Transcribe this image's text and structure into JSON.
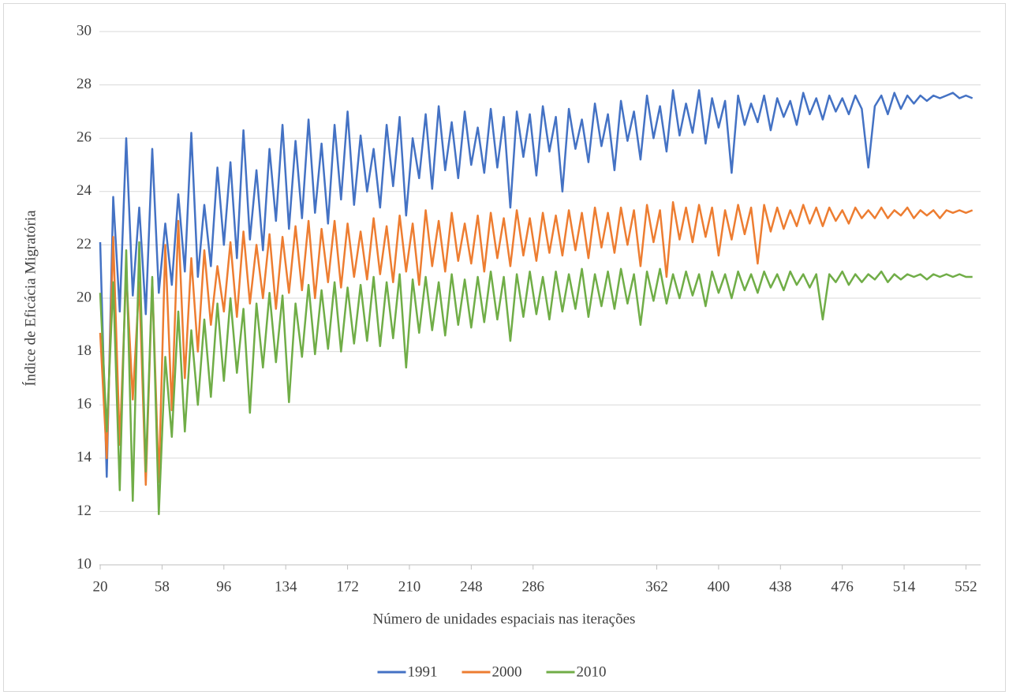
{
  "chart_data": {
    "type": "line",
    "x_label": "Número de unidades espaciais nas iterações",
    "y_label": "Índice de Eficácia Migratória",
    "x": [
      20,
      24,
      28,
      32,
      36,
      40,
      44,
      48,
      52,
      56,
      60,
      64,
      68,
      72,
      76,
      80,
      84,
      88,
      92,
      96,
      100,
      104,
      108,
      112,
      116,
      120,
      124,
      128,
      132,
      136,
      140,
      144,
      148,
      152,
      156,
      160,
      164,
      168,
      172,
      176,
      180,
      184,
      188,
      192,
      196,
      200,
      204,
      208,
      212,
      216,
      220,
      224,
      228,
      232,
      236,
      240,
      244,
      248,
      252,
      256,
      260,
      264,
      268,
      272,
      276,
      280,
      284,
      288,
      292,
      296,
      300,
      304,
      308,
      312,
      316,
      320,
      324,
      328,
      332,
      336,
      340,
      344,
      348,
      352,
      356,
      360,
      364,
      368,
      372,
      376,
      380,
      384,
      388,
      392,
      396,
      400,
      404,
      408,
      412,
      416,
      420,
      424,
      428,
      432,
      436,
      440,
      444,
      448,
      452,
      456,
      460,
      464,
      468,
      472,
      476,
      480,
      484,
      488,
      492,
      496,
      500,
      504,
      508,
      512,
      516,
      520,
      524,
      528,
      532,
      536,
      540,
      544,
      548,
      552,
      556
    ],
    "xlim": [
      19.5,
      561
    ],
    "xticks": [
      20,
      58,
      96,
      134,
      172,
      210,
      248,
      286,
      362,
      400,
      438,
      476,
      514,
      552
    ],
    "ylim": [
      10,
      30
    ],
    "yticks": [
      10,
      12,
      14,
      16,
      18,
      20,
      22,
      24,
      26,
      28,
      30
    ],
    "grid": true,
    "legend": "bottom",
    "series": [
      {
        "name": "1991",
        "color": "#4472c4",
        "values": [
          22.1,
          13.3,
          23.8,
          19.5,
          26.0,
          20.1,
          23.4,
          19.4,
          25.6,
          20.2,
          22.8,
          20.5,
          23.9,
          21.0,
          26.2,
          20.8,
          23.5,
          21.2,
          24.9,
          22.0,
          25.1,
          21.5,
          26.3,
          22.2,
          24.8,
          21.8,
          25.6,
          22.9,
          26.5,
          22.6,
          25.9,
          23.0,
          26.7,
          23.2,
          25.8,
          22.8,
          26.5,
          23.7,
          27.0,
          23.5,
          26.1,
          24.0,
          25.6,
          23.4,
          26.5,
          24.2,
          26.8,
          23.1,
          26.0,
          24.5,
          26.9,
          24.1,
          27.2,
          24.8,
          26.6,
          24.5,
          27.0,
          25.0,
          26.4,
          24.7,
          27.1,
          24.9,
          26.8,
          23.4,
          27.0,
          25.3,
          26.9,
          24.6,
          27.2,
          25.5,
          26.8,
          24.0,
          27.1,
          25.6,
          26.7,
          25.1,
          27.3,
          25.7,
          26.9,
          24.8,
          27.4,
          25.9,
          27.0,
          25.2,
          27.6,
          26.0,
          27.2,
          25.5,
          27.8,
          26.1,
          27.3,
          26.2,
          27.8,
          25.8,
          27.5,
          26.4,
          27.4,
          24.7,
          27.6,
          26.5,
          27.3,
          26.6,
          27.6,
          26.3,
          27.5,
          26.8,
          27.4,
          26.5,
          27.7,
          26.9,
          27.5,
          26.7,
          27.6,
          27.0,
          27.5,
          26.9,
          27.6,
          27.1,
          24.9,
          27.2,
          27.6,
          26.9,
          27.7,
          27.1,
          27.6,
          27.3,
          27.6,
          27.4,
          27.6,
          27.5,
          27.6,
          27.7,
          27.5,
          27.6,
          27.5
        ]
      },
      {
        "name": "2000",
        "color": "#ed7d31",
        "values": [
          18.7,
          14.0,
          22.3,
          14.5,
          21.0,
          16.2,
          20.6,
          13.0,
          20.7,
          13.1,
          22.0,
          15.8,
          22.9,
          17.0,
          21.5,
          18.0,
          21.8,
          19.0,
          21.2,
          19.5,
          22.1,
          19.3,
          22.5,
          19.8,
          22.0,
          20.0,
          22.4,
          19.6,
          22.3,
          20.2,
          22.7,
          20.3,
          22.9,
          20.0,
          22.6,
          20.6,
          22.9,
          20.4,
          22.8,
          20.8,
          22.5,
          20.7,
          23.0,
          20.9,
          22.7,
          20.6,
          23.1,
          21.0,
          22.8,
          20.5,
          23.3,
          21.2,
          22.9,
          21.0,
          23.2,
          21.4,
          22.8,
          21.3,
          23.1,
          21.0,
          23.2,
          21.5,
          23.0,
          21.2,
          23.3,
          21.6,
          23.0,
          21.4,
          23.2,
          21.7,
          23.1,
          21.6,
          23.3,
          21.8,
          23.2,
          21.5,
          23.4,
          21.9,
          23.2,
          21.7,
          23.4,
          22.0,
          23.3,
          21.2,
          23.5,
          22.1,
          23.3,
          20.8,
          23.6,
          22.2,
          23.4,
          22.1,
          23.5,
          22.3,
          23.4,
          21.6,
          23.3,
          22.2,
          23.5,
          22.4,
          23.4,
          21.3,
          23.5,
          22.5,
          23.4,
          22.6,
          23.3,
          22.7,
          23.5,
          22.8,
          23.4,
          22.7,
          23.4,
          22.9,
          23.3,
          22.8,
          23.4,
          23.0,
          23.3,
          23.0,
          23.4,
          23.0,
          23.3,
          23.1,
          23.4,
          23.0,
          23.3,
          23.1,
          23.3,
          23.0,
          23.3,
          23.2,
          23.3,
          23.2,
          23.3
        ]
      },
      {
        "name": "2010",
        "color": "#70ad47",
        "values": [
          20.2,
          15.0,
          20.6,
          12.8,
          21.8,
          12.4,
          22.1,
          13.5,
          20.8,
          11.9,
          17.8,
          14.8,
          19.5,
          15.0,
          18.8,
          16.0,
          19.2,
          16.3,
          19.8,
          16.9,
          20.0,
          17.2,
          19.6,
          15.7,
          19.8,
          17.4,
          20.2,
          17.6,
          20.1,
          16.1,
          19.8,
          17.8,
          20.5,
          17.9,
          20.3,
          18.1,
          20.6,
          18.0,
          20.4,
          18.3,
          20.5,
          18.4,
          20.8,
          18.2,
          20.6,
          18.5,
          20.9,
          17.4,
          20.7,
          18.7,
          20.8,
          18.8,
          20.6,
          18.6,
          20.9,
          19.0,
          20.7,
          18.9,
          20.8,
          19.1,
          21.0,
          19.2,
          20.8,
          18.4,
          20.9,
          19.3,
          21.0,
          19.4,
          20.8,
          19.2,
          21.0,
          19.5,
          20.9,
          19.6,
          21.1,
          19.3,
          20.9,
          19.7,
          21.0,
          19.6,
          21.1,
          19.8,
          20.9,
          19.0,
          21.0,
          19.9,
          21.1,
          19.8,
          20.9,
          20.0,
          21.0,
          20.1,
          20.9,
          19.7,
          21.0,
          20.2,
          20.9,
          20.0,
          21.0,
          20.3,
          20.9,
          20.2,
          21.0,
          20.4,
          20.9,
          20.3,
          21.0,
          20.5,
          20.9,
          20.4,
          20.9,
          19.2,
          20.9,
          20.6,
          21.0,
          20.5,
          20.9,
          20.6,
          20.9,
          20.7,
          21.0,
          20.6,
          20.9,
          20.7,
          20.9,
          20.8,
          20.9,
          20.7,
          20.9,
          20.8,
          20.9,
          20.8,
          20.9,
          20.8,
          20.8
        ]
      }
    ]
  }
}
